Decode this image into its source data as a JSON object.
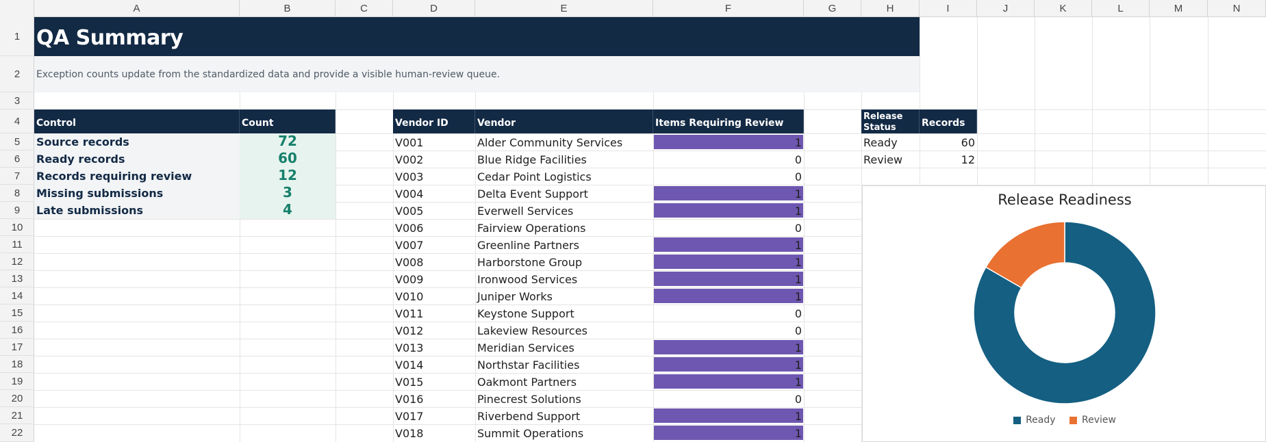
{
  "columns": [
    "A",
    "B",
    "C",
    "D",
    "E",
    "F",
    "G",
    "H",
    "I",
    "J",
    "K",
    "L",
    "M",
    "N"
  ],
  "rows": [
    "1",
    "2",
    "3",
    "4",
    "5",
    "6",
    "7",
    "8",
    "9",
    "10",
    "11",
    "12",
    "13",
    "14",
    "15",
    "16",
    "17",
    "18",
    "19",
    "20",
    "21",
    "22"
  ],
  "title": "QA Summary",
  "subtitle": "Exception counts update from the standardized data and provide a visible human-review queue.",
  "controls": {
    "header_control": "Control",
    "header_count": "Count",
    "items": [
      {
        "label": "Source records",
        "count": "72"
      },
      {
        "label": "Ready records",
        "count": "60"
      },
      {
        "label": "Records requiring review",
        "count": "12"
      },
      {
        "label": "Missing submissions",
        "count": "3"
      },
      {
        "label": "Late submissions",
        "count": "4"
      }
    ]
  },
  "vendors": {
    "header_id": "Vendor ID",
    "header_vendor": "Vendor",
    "header_items": "Items Requiring Review",
    "bar_color": "#6e57b0",
    "rows": [
      {
        "id": "V001",
        "name": "Alder Community Services",
        "items": "1"
      },
      {
        "id": "V002",
        "name": "Blue Ridge Facilities",
        "items": "0"
      },
      {
        "id": "V003",
        "name": "Cedar Point Logistics",
        "items": "0"
      },
      {
        "id": "V004",
        "name": "Delta Event Support",
        "items": "1"
      },
      {
        "id": "V005",
        "name": "Everwell Services",
        "items": "1"
      },
      {
        "id": "V006",
        "name": "Fairview Operations",
        "items": "0"
      },
      {
        "id": "V007",
        "name": "Greenline Partners",
        "items": "1"
      },
      {
        "id": "V008",
        "name": "Harborstone Group",
        "items": "1"
      },
      {
        "id": "V009",
        "name": "Ironwood Services",
        "items": "1"
      },
      {
        "id": "V010",
        "name": "Juniper Works",
        "items": "1"
      },
      {
        "id": "V011",
        "name": "Keystone Support",
        "items": "0"
      },
      {
        "id": "V012",
        "name": "Lakeview Resources",
        "items": "0"
      },
      {
        "id": "V013",
        "name": "Meridian Services",
        "items": "1"
      },
      {
        "id": "V014",
        "name": "Northstar Facilities",
        "items": "1"
      },
      {
        "id": "V015",
        "name": "Oakmont Partners",
        "items": "1"
      },
      {
        "id": "V016",
        "name": "Pinecrest Solutions",
        "items": "0"
      },
      {
        "id": "V017",
        "name": "Riverbend Support",
        "items": "1"
      },
      {
        "id": "V018",
        "name": "Summit Operations",
        "items": "1"
      }
    ]
  },
  "release": {
    "header_status": "Release Status",
    "header_records": "Records",
    "rows": [
      {
        "status": "Ready",
        "records": "60"
      },
      {
        "status": "Review",
        "records": "12"
      }
    ]
  },
  "chart_data": {
    "type": "pie",
    "title": "Release Readiness",
    "categories": [
      "Ready",
      "Review"
    ],
    "values": [
      60,
      12
    ],
    "colors": [
      "#145f82",
      "#e97132"
    ],
    "donut": true,
    "legend": "bottom"
  }
}
